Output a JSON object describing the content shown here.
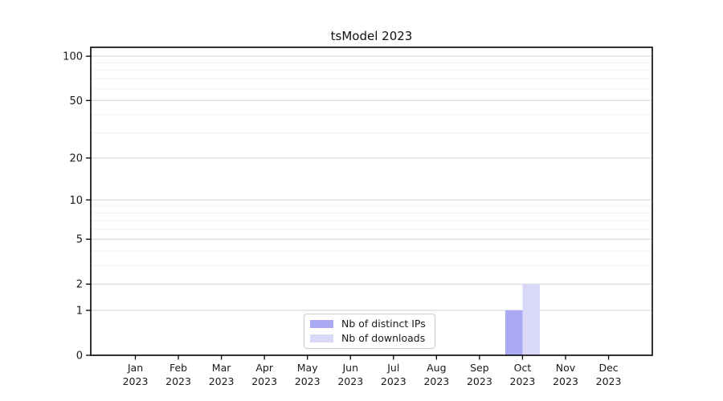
{
  "title": "tsModel 2023",
  "chart_data": {
    "type": "bar",
    "title": "tsModel 2023",
    "categories": [
      "Jan",
      "Feb",
      "Mar",
      "Apr",
      "May",
      "Jun",
      "Jul",
      "Aug",
      "Sep",
      "Oct",
      "Nov",
      "Dec"
    ],
    "category_year": "2023",
    "series": [
      {
        "name": "Nb of distinct IPs",
        "color": "#aaaaf4",
        "values": [
          0,
          0,
          0,
          0,
          0,
          0,
          0,
          0,
          0,
          1,
          0,
          0
        ]
      },
      {
        "name": "Nb of downloads",
        "color": "#d9d9f7",
        "values": [
          0,
          0,
          0,
          0,
          0,
          0,
          0,
          0,
          0,
          2,
          0,
          0
        ]
      }
    ],
    "y_scale": "log1p",
    "y_ticks": [
      0,
      1,
      2,
      5,
      10,
      20,
      50,
      100
    ],
    "y_minor_ticks": [
      3,
      4,
      6,
      7,
      8,
      9,
      30,
      40,
      60,
      70,
      80,
      90
    ],
    "ylim": [
      0,
      115
    ],
    "grid": true,
    "legend_position": "lower center",
    "colors": {
      "axis": "#000000",
      "major_grid": "#d2d2d2",
      "minor_grid": "#f1f1f1",
      "tick_text": "#1a1a1a"
    }
  }
}
